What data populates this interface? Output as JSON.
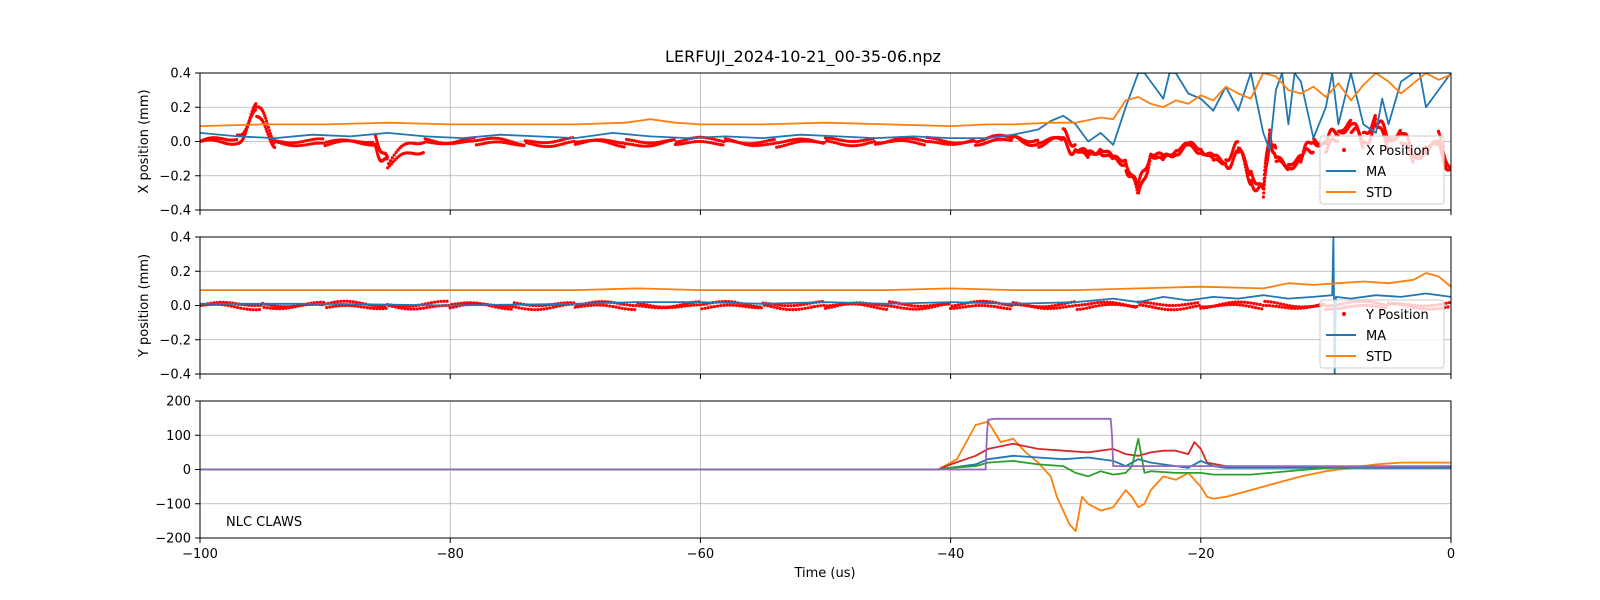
{
  "figure_title": "LERFUJI_2024-10-21_00-35-06.npz",
  "colors": {
    "position_points": "#ff0000",
    "ma": "#1f77b4",
    "std": "#ff7f0e",
    "claws_green": "#2ca02c",
    "claws_red": "#d62728",
    "claws_purple": "#9467bd",
    "grid": "#b0b0b0"
  },
  "chart_data": [
    {
      "type": "scatter",
      "ylabel": "X position (mm)",
      "xlim": [
        -100,
        0
      ],
      "ylim": [
        -0.4,
        0.4
      ],
      "x_ticks": [
        -100,
        -80,
        -60,
        -40,
        -20,
        0
      ],
      "y_ticks": [
        -0.4,
        -0.2,
        0.0,
        0.2,
        0.4
      ],
      "y_tick_labels": [
        "−0.4",
        "−0.2",
        "0.0",
        "0.2",
        "0.4"
      ],
      "grid": true,
      "legend_position": "lower-right",
      "legend": [
        "X Position",
        "MA",
        "STD"
      ],
      "series": [
        {
          "name": "X Position",
          "kind": "points",
          "color": "#ff0000",
          "x": [
            -100,
            -97,
            -95.5,
            -94,
            -90,
            -86,
            -85,
            -82,
            -78,
            -74,
            -70,
            -66,
            -62,
            -58,
            -54,
            -50,
            -46,
            -42,
            -38,
            -35,
            -33,
            -31,
            -30,
            -29,
            -28,
            -27,
            -26,
            -25,
            -24,
            -23,
            -22,
            -21,
            -20,
            -19,
            -18,
            -17,
            -16,
            -15,
            -14.5,
            -14,
            -13,
            -12,
            -11,
            -10,
            -9,
            -8,
            -7,
            -6,
            -5,
            -4,
            -3,
            -2,
            -1,
            0
          ],
          "y": [
            0.0,
            0.01,
            0.18,
            0.0,
            -0.01,
            0.0,
            -0.13,
            0.0,
            0.0,
            -0.01,
            0.0,
            -0.01,
            0.0,
            0.0,
            -0.01,
            0.0,
            0.0,
            0.0,
            0.0,
            0.02,
            -0.01,
            0.02,
            -0.04,
            -0.08,
            -0.05,
            -0.1,
            -0.12,
            -0.3,
            -0.07,
            -0.1,
            -0.06,
            -0.02,
            -0.05,
            -0.1,
            -0.12,
            -0.05,
            -0.2,
            -0.3,
            0.05,
            -0.1,
            -0.15,
            -0.1,
            0.0,
            -0.02,
            0.05,
            0.1,
            0.0,
            0.12,
            0.0,
            0.05,
            -0.1,
            -0.05,
            0.0,
            -0.18
          ]
        },
        {
          "name": "MA",
          "kind": "line",
          "color": "#1f77b4",
          "x": [
            -100,
            -97,
            -94,
            -91,
            -88,
            -85,
            -82,
            -79,
            -76,
            -73,
            -70,
            -67,
            -64,
            -61,
            -58,
            -55,
            -52,
            -49,
            -46,
            -43,
            -40,
            -37,
            -35,
            -33,
            -32,
            -31,
            -30,
            -29,
            -28,
            -27,
            -26,
            -25,
            -24.5,
            -24,
            -23,
            -22.5,
            -22,
            -21,
            -20,
            -19,
            -18,
            -17,
            -16,
            -15,
            -14.5,
            -14,
            -13.5,
            -13,
            -12.5,
            -12,
            -11,
            -10,
            -9.5,
            -9,
            -8,
            -7,
            -6,
            -5.5,
            -5,
            -4,
            -3,
            -2.5,
            -2,
            -1,
            0
          ],
          "y": [
            0.05,
            0.03,
            0.02,
            0.04,
            0.03,
            0.05,
            0.03,
            0.02,
            0.04,
            0.03,
            0.02,
            0.05,
            0.03,
            0.02,
            0.03,
            0.02,
            0.04,
            0.03,
            0.02,
            0.03,
            0.02,
            0.02,
            0.04,
            0.07,
            0.12,
            0.15,
            0.1,
            0.0,
            0.05,
            -0.02,
            0.2,
            0.4,
            0.4,
            0.35,
            0.25,
            0.4,
            0.4,
            0.28,
            0.25,
            0.18,
            0.32,
            0.18,
            0.4,
            0.05,
            -0.05,
            0.3,
            0.4,
            0.1,
            0.4,
            0.35,
            0.02,
            0.2,
            0.4,
            0.1,
            0.4,
            0.1,
            0.05,
            0.25,
            0.1,
            0.35,
            0.4,
            0.4,
            0.2,
            0.3,
            0.4
          ]
        },
        {
          "name": "STD",
          "kind": "line",
          "color": "#ff7f0e",
          "x": [
            -100,
            -95,
            -90,
            -85,
            -80,
            -75,
            -70,
            -66,
            -64,
            -62,
            -60,
            -55,
            -50,
            -45,
            -40,
            -37,
            -35,
            -32,
            -30,
            -28,
            -27,
            -26,
            -25,
            -24,
            -23,
            -22,
            -21,
            -20,
            -19,
            -18,
            -17,
            -16,
            -15,
            -14,
            -13,
            -12,
            -11,
            -10,
            -9,
            -8,
            -7,
            -6,
            -5,
            -4,
            -3,
            -2,
            -1,
            0
          ],
          "y": [
            0.09,
            0.1,
            0.1,
            0.11,
            0.1,
            0.1,
            0.1,
            0.11,
            0.13,
            0.11,
            0.1,
            0.1,
            0.11,
            0.1,
            0.09,
            0.1,
            0.1,
            0.11,
            0.11,
            0.14,
            0.13,
            0.24,
            0.26,
            0.22,
            0.2,
            0.24,
            0.22,
            0.27,
            0.24,
            0.32,
            0.28,
            0.25,
            0.4,
            0.38,
            0.3,
            0.28,
            0.32,
            0.26,
            0.34,
            0.24,
            0.33,
            0.4,
            0.35,
            0.28,
            0.34,
            0.4,
            0.36,
            0.39
          ]
        }
      ]
    },
    {
      "type": "scatter",
      "ylabel": "Y position (mm)",
      "xlim": [
        -100,
        0
      ],
      "ylim": [
        -0.4,
        0.4
      ],
      "x_ticks": [
        -100,
        -80,
        -60,
        -40,
        -20,
        0
      ],
      "y_ticks": [
        -0.4,
        -0.2,
        0.0,
        0.2,
        0.4
      ],
      "y_tick_labels": [
        "−0.4",
        "−0.2",
        "0.0",
        "0.2",
        "0.4"
      ],
      "grid": true,
      "legend_position": "lower-right",
      "legend": [
        "Y Position",
        "MA",
        "STD"
      ],
      "series": [
        {
          "name": "Y Position",
          "kind": "points",
          "color": "#ff0000",
          "x": [
            -100,
            -95,
            -90,
            -85,
            -80,
            -75,
            -70,
            -65,
            -60,
            -55,
            -50,
            -45,
            -40,
            -35,
            -30,
            -25,
            -20,
            -15,
            -10,
            -5,
            0
          ],
          "y": [
            0.0,
            0.0,
            0.0,
            0.0,
            0.0,
            0.0,
            0.0,
            0.0,
            0.0,
            0.0,
            0.0,
            0.0,
            0.0,
            0.0,
            0.0,
            0.0,
            0.0,
            0.0,
            0.0,
            0.0,
            0.0
          ]
        },
        {
          "name": "MA",
          "kind": "line",
          "color": "#1f77b4",
          "x": [
            -100,
            -90,
            -80,
            -70,
            -65,
            -60,
            -55,
            -50,
            -45,
            -40,
            -35,
            -30,
            -27,
            -25,
            -23,
            -21,
            -19,
            -17,
            -15,
            -13,
            -11,
            -9.5,
            -9.4,
            -9.3,
            -9.2,
            -8,
            -6,
            -4,
            -2,
            0
          ],
          "y": [
            0.01,
            0.01,
            0.0,
            0.01,
            0.02,
            0.02,
            0.01,
            0.02,
            0.01,
            0.02,
            0.01,
            0.02,
            0.04,
            0.02,
            0.05,
            0.03,
            0.05,
            0.04,
            0.06,
            0.04,
            0.05,
            0.06,
            0.4,
            -0.4,
            0.05,
            0.04,
            0.06,
            0.05,
            0.07,
            0.05
          ]
        },
        {
          "name": "STD",
          "kind": "line",
          "color": "#ff7f0e",
          "x": [
            -100,
            -90,
            -80,
            -70,
            -65,
            -60,
            -55,
            -50,
            -45,
            -40,
            -35,
            -30,
            -25,
            -20,
            -15,
            -13,
            -11,
            -9,
            -7,
            -5,
            -3,
            -2,
            -1,
            0
          ],
          "y": [
            0.09,
            0.09,
            0.09,
            0.09,
            0.1,
            0.09,
            0.09,
            0.09,
            0.09,
            0.1,
            0.09,
            0.09,
            0.1,
            0.11,
            0.1,
            0.13,
            0.12,
            0.13,
            0.14,
            0.13,
            0.15,
            0.19,
            0.17,
            0.11
          ]
        }
      ]
    },
    {
      "type": "line",
      "xlabel": "Time (us)",
      "xlim": [
        -100,
        0
      ],
      "ylim": [
        -200,
        200
      ],
      "x_ticks": [
        -100,
        -80,
        -60,
        -40,
        -20,
        0
      ],
      "x_tick_labels": [
        "−100",
        "−80",
        "−60",
        "−40",
        "−20",
        "0"
      ],
      "y_ticks": [
        -200,
        -100,
        0,
        100,
        200
      ],
      "y_tick_labels": [
        "−200",
        "−100",
        "0",
        "100",
        "200"
      ],
      "grid": true,
      "annotation": "NLC CLAWS",
      "series": [
        {
          "kind": "line",
          "color": "#ff7f0e",
          "x": [
            -100,
            -60,
            -41,
            -39.5,
            -38,
            -37,
            -36,
            -35,
            -34,
            -33,
            -32,
            -31.5,
            -31,
            -30.5,
            -30,
            -29.5,
            -29,
            -28,
            -27,
            -26,
            -25.5,
            -25,
            -24.5,
            -24,
            -23,
            -22,
            -21,
            -20.5,
            -20,
            -19.5,
            -19,
            -18,
            -16,
            -14,
            -12,
            -10,
            -8,
            -6,
            -4,
            -2,
            0
          ],
          "y": [
            0,
            0,
            0,
            30,
            130,
            140,
            80,
            90,
            50,
            20,
            -20,
            -80,
            -120,
            -160,
            -180,
            -80,
            -100,
            -120,
            -110,
            -60,
            -80,
            -110,
            -100,
            -60,
            -20,
            -30,
            -10,
            -30,
            -50,
            -80,
            -85,
            -80,
            -60,
            -40,
            -20,
            -5,
            5,
            15,
            20,
            20,
            20
          ]
        },
        {
          "kind": "line",
          "color": "#d62728",
          "x": [
            -100,
            -72,
            -41,
            -40,
            -38,
            -37,
            -35,
            -33,
            -31,
            -29,
            -27,
            -26,
            -25,
            -24,
            -23,
            -22,
            -21,
            -20.5,
            -20,
            -19.5,
            -18,
            -10,
            0
          ],
          "y": [
            0,
            0,
            0,
            15,
            40,
            60,
            75,
            60,
            55,
            50,
            60,
            45,
            40,
            50,
            55,
            55,
            45,
            80,
            60,
            20,
            10,
            5,
            5
          ]
        },
        {
          "kind": "line",
          "color": "#1f77b4",
          "x": [
            -100,
            -41,
            -40,
            -38,
            -37,
            -35,
            -33,
            -31,
            -29,
            -27,
            -26,
            -25,
            -24,
            -23,
            -22,
            -21,
            -20,
            -19,
            -18,
            -10,
            0
          ],
          "y": [
            0,
            0,
            5,
            15,
            30,
            40,
            35,
            30,
            35,
            25,
            10,
            30,
            20,
            15,
            10,
            5,
            25,
            10,
            5,
            5,
            5
          ]
        },
        {
          "kind": "line",
          "color": "#2ca02c",
          "x": [
            -100,
            -41,
            -40,
            -38,
            -37,
            -35,
            -33,
            -31,
            -30,
            -29,
            -28,
            -27,
            -26,
            -25.5,
            -25,
            -24.5,
            -24,
            -22,
            -20,
            -19,
            -16,
            -10,
            0
          ],
          "y": [
            0,
            0,
            5,
            10,
            20,
            25,
            15,
            10,
            -10,
            -20,
            -5,
            -15,
            -10,
            10,
            90,
            -10,
            -5,
            -10,
            -10,
            -15,
            -15,
            5,
            10
          ]
        },
        {
          "kind": "line",
          "color": "#9467bd",
          "x": [
            -100,
            -37.2,
            -37.1,
            -37,
            -36.5,
            -27.2,
            -27.1,
            -27,
            -10,
            0
          ],
          "y": [
            0,
            0,
            100,
            145,
            148,
            148,
            100,
            10,
            10,
            10
          ]
        }
      ]
    }
  ]
}
